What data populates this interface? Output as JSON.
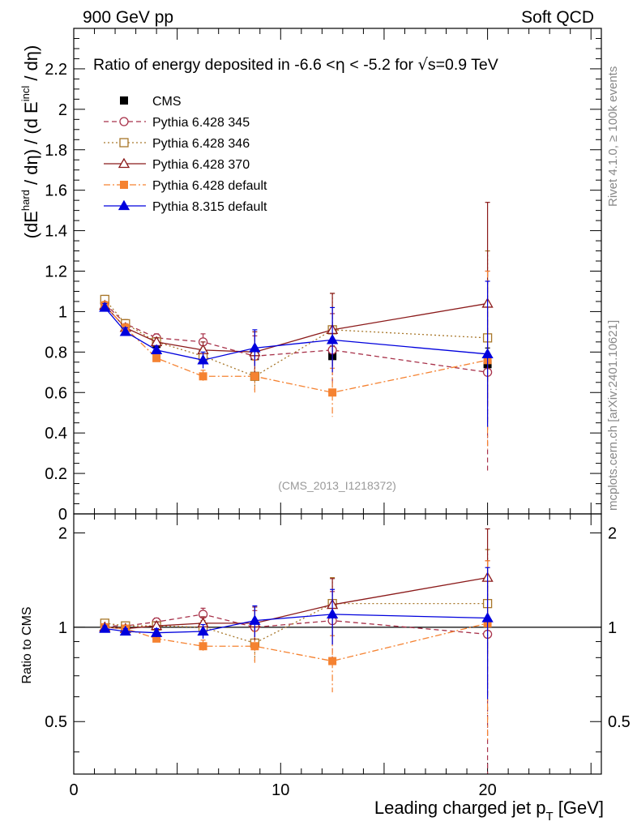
{
  "header": {
    "left": "900 GeV pp",
    "right": "Soft QCD"
  },
  "side": {
    "rivet": "Rivet 4.1.0, ≥ 100k events",
    "url": "mcplots.cern.ch [arXiv:2401.10621]"
  },
  "chart_data": [
    {
      "type": "scatter",
      "panel": "main",
      "title_prefix": "Ratio of energy deposited in -6.6 <",
      "title_eta": "η",
      "title_mid": " < -5.2 for ",
      "title_sqrt": "√",
      "title_suffix": "s=0.9 TeV",
      "ylabel_a": "(dE",
      "ylabel_sup1": "hard",
      "ylabel_b": " / dη) / (d E",
      "ylabel_sup2": "incl",
      "ylabel_c": " / dη)",
      "analysis_id": "(CMS_2013_I1218372)",
      "xlim": [
        0,
        25.5
      ],
      "ylim": [
        0,
        2.4
      ],
      "yticks": [
        0,
        0.2,
        0.4,
        0.6,
        0.8,
        1,
        1.2,
        1.4,
        1.6,
        1.8,
        2,
        2.2
      ],
      "ytick_labels": [
        "0",
        "0.2",
        "0.4",
        "0.6",
        "0.8",
        "1",
        "1.2",
        "1.4",
        "1.6",
        "1.8",
        "2",
        "2.2"
      ],
      "x": [
        1.5,
        2.5,
        4.0,
        6.25,
        8.75,
        12.5,
        20.0
      ],
      "series": [
        {
          "name": "CMS",
          "color": "#000000",
          "marker": "square-filled",
          "line": "none",
          "values": [
            1.03,
            0.93,
            0.84,
            0.79,
            0.78,
            0.78,
            0.74
          ],
          "errors": [
            0.02,
            0.02,
            0.02,
            0.03,
            0.04,
            0.05,
            0.08
          ]
        },
        {
          "name": "Pythia 6.428 345",
          "color": "#a8324a",
          "marker": "circle-open",
          "line": "dashed",
          "values": [
            1.04,
            0.94,
            0.87,
            0.85,
            0.78,
            0.81,
            0.7
          ],
          "errors": [
            0.02,
            0.02,
            0.02,
            0.04,
            0.1,
            0.18,
            0.5
          ]
        },
        {
          "name": "Pythia 6.428 346",
          "color": "#a8772a",
          "marker": "square-open",
          "line": "dotted",
          "values": [
            1.06,
            0.94,
            0.85,
            0.78,
            0.68,
            0.91,
            0.87
          ],
          "errors": [
            0.02,
            0.02,
            0.02,
            0.04,
            0.08,
            0.18,
            0.43
          ]
        },
        {
          "name": "Pythia 6.428 370",
          "color": "#8b1a1a",
          "marker": "triangle-open",
          "line": "solid",
          "values": [
            1.03,
            0.92,
            0.85,
            0.81,
            0.8,
            0.91,
            1.04
          ],
          "errors": [
            0.02,
            0.02,
            0.02,
            0.04,
            0.1,
            0.18,
            0.5
          ]
        },
        {
          "name": "Pythia 6.428 default",
          "color": "#f58231",
          "marker": "square-filled",
          "line": "dashdot",
          "values": [
            1.03,
            0.92,
            0.77,
            0.68,
            0.68,
            0.6,
            0.76
          ],
          "errors": [
            0.02,
            0.02,
            0.02,
            0.03,
            0.08,
            0.12,
            0.44
          ]
        },
        {
          "name": "Pythia 8.315 default",
          "color": "#0000dd",
          "marker": "triangle-filled",
          "line": "solid",
          "values": [
            1.02,
            0.9,
            0.81,
            0.76,
            0.82,
            0.86,
            0.79
          ],
          "errors": [
            0.02,
            0.02,
            0.02,
            0.04,
            0.09,
            0.16,
            0.36
          ]
        }
      ]
    },
    {
      "type": "scatter",
      "panel": "ratio",
      "ylabel": "Ratio to CMS",
      "xlabel_a": "Leading charged jet p",
      "xlabel_sub": "T",
      "xlabel_b": " [GeV]",
      "xlim": [
        0,
        25.5
      ],
      "ylim": [
        0.34,
        2.3
      ],
      "yscale": "log",
      "yticks": [
        0.5,
        1,
        2
      ],
      "ytick_labels": [
        "0.5",
        "1",
        "2"
      ],
      "xticks": [
        0,
        10,
        20
      ],
      "xtick_labels": [
        "0",
        "10",
        "20"
      ],
      "x": [
        1.5,
        2.5,
        4.0,
        6.25,
        8.75,
        12.5,
        20.0
      ],
      "series": [
        {
          "name": "CMS",
          "color": "#000000",
          "values": [
            1.0,
            1.0,
            1.0,
            1.0,
            1.0,
            1.0,
            1.0
          ],
          "band": [
            0.02,
            0.02,
            0.02,
            0.03,
            0.05,
            0.06,
            0.11
          ]
        },
        {
          "name": "Pythia 6.428 345",
          "color": "#a8324a",
          "marker": "circle-open",
          "line": "dashed",
          "values": [
            1.01,
            1.01,
            1.04,
            1.1,
            1.0,
            1.05,
            0.95
          ],
          "errors": [
            0.02,
            0.02,
            0.03,
            0.05,
            0.13,
            0.25,
            0.68
          ]
        },
        {
          "name": "Pythia 6.428 346",
          "color": "#a8772a",
          "marker": "square-open",
          "line": "dotted",
          "values": [
            1.03,
            1.01,
            1.01,
            1.0,
            0.89,
            1.19,
            1.19
          ],
          "errors": [
            0.02,
            0.02,
            0.03,
            0.05,
            0.11,
            0.25,
            0.58
          ]
        },
        {
          "name": "Pythia 6.428 370",
          "color": "#8b1a1a",
          "marker": "triangle-open",
          "line": "solid",
          "values": [
            1.0,
            0.99,
            1.01,
            1.03,
            1.03,
            1.18,
            1.44
          ],
          "errors": [
            0.02,
            0.02,
            0.03,
            0.05,
            0.13,
            0.25,
            0.62
          ]
        },
        {
          "name": "Pythia 6.428 default",
          "color": "#f58231",
          "marker": "square-filled",
          "line": "dashdot",
          "values": [
            1.0,
            0.99,
            0.92,
            0.87,
            0.87,
            0.78,
            1.03
          ],
          "errors": [
            0.02,
            0.02,
            0.02,
            0.04,
            0.1,
            0.16,
            0.6
          ]
        },
        {
          "name": "Pythia 8.315 default",
          "color": "#0000dd",
          "marker": "triangle-filled",
          "line": "solid",
          "values": [
            0.99,
            0.97,
            0.96,
            0.97,
            1.05,
            1.1,
            1.07
          ],
          "errors": [
            0.02,
            0.02,
            0.03,
            0.05,
            0.12,
            0.22,
            0.48
          ]
        }
      ]
    }
  ]
}
